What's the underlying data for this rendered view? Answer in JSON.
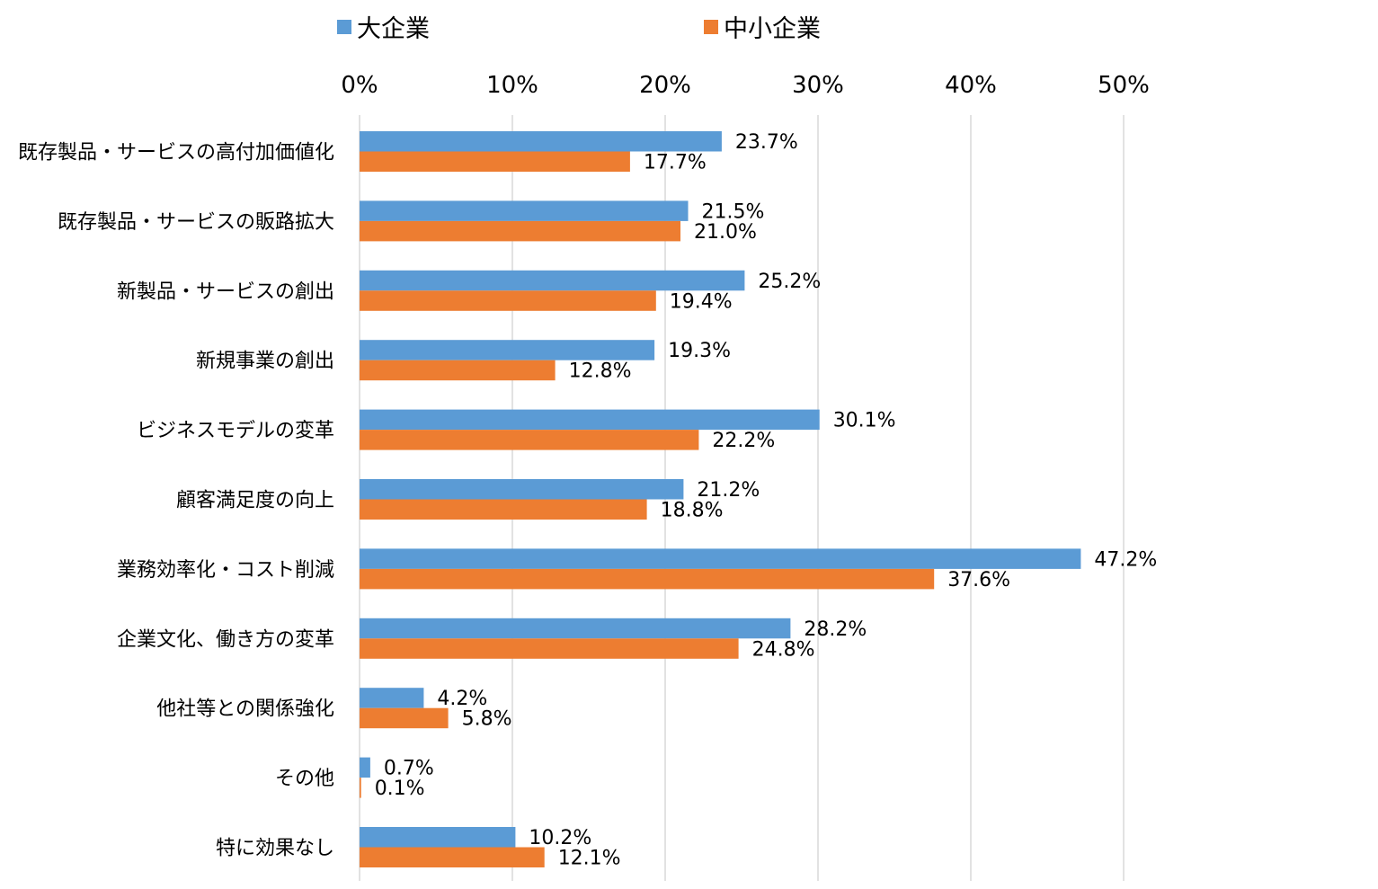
{
  "chart_data": {
    "type": "bar",
    "orientation": "horizontal",
    "title": "",
    "xlabel": "",
    "ylabel": "",
    "xlim": [
      0,
      50
    ],
    "xticks": [
      "0%",
      "10%",
      "20%",
      "30%",
      "40%",
      "50%"
    ],
    "grid": true,
    "legend_position": "top",
    "categories": [
      "既存製品・サービスの高付加価値化",
      "既存製品・サービスの販路拡大",
      "新製品・サービスの創出",
      "新規事業の創出",
      "ビジネスモデルの変革",
      "顧客満足度の向上",
      "業務効率化・コスト削減",
      "企業文化、働き方の変革",
      "他社等との関係強化",
      "その他",
      "特に効果なし"
    ],
    "series": [
      {
        "name": "大企業",
        "color": "#5b9bd5",
        "values": [
          23.7,
          21.5,
          25.2,
          19.3,
          30.1,
          21.2,
          47.2,
          28.2,
          4.2,
          0.7,
          10.2
        ],
        "labels": [
          "23.7%",
          "21.5%",
          "25.2%",
          "19.3%",
          "30.1%",
          "21.2%",
          "47.2%",
          "28.2%",
          "4.2%",
          "0.7%",
          "10.2%"
        ]
      },
      {
        "name": "中小企業",
        "color": "#ed7d31",
        "values": [
          17.7,
          21.0,
          19.4,
          12.8,
          22.2,
          18.8,
          37.6,
          24.8,
          5.8,
          0.1,
          12.1
        ],
        "labels": [
          "17.7%",
          "21.0%",
          "19.4%",
          "12.8%",
          "22.2%",
          "18.8%",
          "37.6%",
          "24.8%",
          "5.8%",
          "0.1%",
          "12.1%"
        ]
      }
    ]
  }
}
